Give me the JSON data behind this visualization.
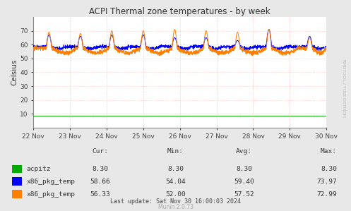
{
  "title": "ACPI Thermal zone temperatures - by week",
  "ylabel": "Celsius",
  "background_color": "#e8e8e8",
  "plot_bg_color": "#ffffff",
  "grid_color": "#ff8080",
  "ylim": [
    0,
    80
  ],
  "yticks": [
    10,
    20,
    30,
    40,
    50,
    60,
    70
  ],
  "xlabel_dates": [
    "22 Nov",
    "23 Nov",
    "24 Nov",
    "25 Nov",
    "26 Nov",
    "27 Nov",
    "28 Nov",
    "29 Nov",
    "30 Nov"
  ],
  "n_points": 2016,
  "green_val": 8.3,
  "blue_base": 58.5,
  "orange_base": 57.5,
  "spike_positions": [
    108,
    324,
    540,
    756,
    972,
    1188,
    1404,
    1620,
    1900
  ],
  "spike_heights_blue": [
    67,
    66,
    67,
    67,
    65,
    65,
    63,
    71,
    66
  ],
  "spike_heights_orange": [
    69,
    68,
    70,
    70,
    71,
    70,
    69,
    71,
    65
  ],
  "legend_items": [
    {
      "label": "acpitz",
      "color": "#00aa00"
    },
    {
      "label": "x86_pkg_temp",
      "color": "#0000ff"
    },
    {
      "label": "x86_pkg_temp",
      "color": "#ff7f00"
    }
  ],
  "cur_values": [
    "8.30",
    "58.66",
    "56.33"
  ],
  "min_values": [
    "8.30",
    "54.04",
    "52.00"
  ],
  "avg_values": [
    "8.30",
    "59.40",
    "57.52"
  ],
  "max_values": [
    "8.30",
    "73.97",
    "72.99"
  ],
  "last_update": "Last update: Sat Nov 30 16:00:03 2024",
  "munin_version": "Munin 2.0.73",
  "rrdtool_watermark": "RRDTOOL / TOBI OETIKER"
}
